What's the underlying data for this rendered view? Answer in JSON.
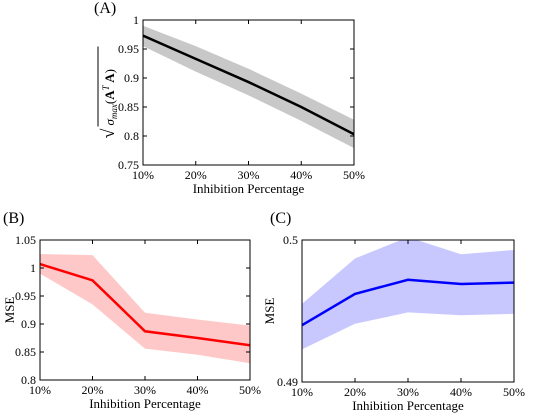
{
  "chart_data": [
    {
      "panel_label": "(A)",
      "type": "line",
      "xlabel": "Inhibition Percentage",
      "ylabel": "√σmax(AᵀA)",
      "x": [
        "10%",
        "20%",
        "30%",
        "40%",
        "50%"
      ],
      "ylim": [
        0.75,
        1.0
      ],
      "yticks": [
        "0.75",
        "0.8",
        "0.85",
        "0.9",
        "0.95",
        "1"
      ],
      "series": [
        {
          "values": [
            0.973,
            0.933,
            0.893,
            0.85,
            0.803
          ],
          "band_upper": [
            0.99,
            0.955,
            0.916,
            0.873,
            0.828
          ],
          "band_lower": [
            0.955,
            0.911,
            0.87,
            0.826,
            0.779
          ],
          "color": "#000000",
          "band_color": "#c8c8c8"
        }
      ]
    },
    {
      "panel_label": "(B)",
      "type": "line",
      "xlabel": "Inhibition Percentage",
      "ylabel": "MSE",
      "x": [
        "10%",
        "20%",
        "30%",
        "40%",
        "50%"
      ],
      "ylim": [
        0.8,
        1.05
      ],
      "yticks": [
        "0.8",
        "0.85",
        "0.9",
        "0.95",
        "1",
        "1.05"
      ],
      "series": [
        {
          "values": [
            1.007,
            0.978,
            0.887,
            0.875,
            0.862
          ],
          "band_upper": [
            1.025,
            1.023,
            0.92,
            0.908,
            0.897
          ],
          "band_lower": [
            0.99,
            0.935,
            0.856,
            0.845,
            0.83
          ],
          "color": "#ff0000",
          "band_color": "#ffc8c8"
        }
      ]
    },
    {
      "panel_label": "(C)",
      "type": "line",
      "xlabel": "Inhibition Percentage",
      "ylabel": "MSE",
      "x": [
        "10%",
        "20%",
        "30%",
        "40%",
        "50%"
      ],
      "ylim": [
        0.49,
        0.5
      ],
      "yticks": [
        "0.49",
        "0.5"
      ],
      "series": [
        {
          "values": [
            0.494,
            0.4962,
            0.4972,
            0.4969,
            0.497
          ],
          "band_upper": [
            0.4955,
            0.4987,
            0.5002,
            0.499,
            0.4993
          ],
          "band_lower": [
            0.4923,
            0.4941,
            0.4949,
            0.4947,
            0.4948
          ],
          "color": "#0000ff",
          "band_color": "#c8c8ff"
        }
      ]
    }
  ]
}
